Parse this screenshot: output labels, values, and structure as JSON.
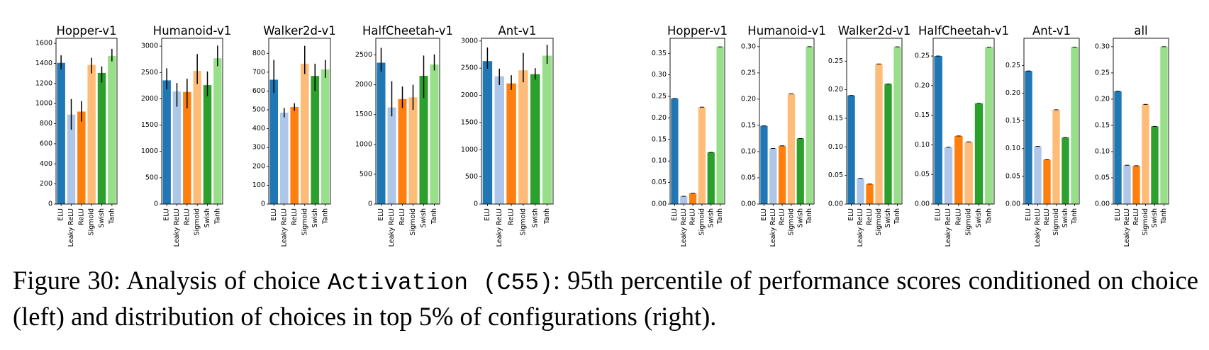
{
  "caption": {
    "label": "Figure 30:",
    "pre": "Analysis of choice",
    "code": "Activation (C55)",
    "post": ": 95th percentile of performance scores conditioned on choice (left) and distribution of choices in top 5% of configurations (right)."
  },
  "colors": [
    "#1f77b4",
    "#aec7e8",
    "#ff7f0e",
    "#ffbb78",
    "#2ca02c",
    "#98df8a"
  ],
  "chart_data": [
    {
      "type": "bar",
      "title": "Hopper-v1",
      "group": "left",
      "categories": [
        "ELU",
        "Leaky ReLU",
        "ReLU",
        "Sigmoid",
        "Swish",
        "Tanh"
      ],
      "values": [
        1405,
        890,
        920,
        1385,
        1305,
        1475
      ],
      "err_low": [
        1340,
        740,
        820,
        1300,
        1210,
        1420
      ],
      "err_high": [
        1480,
        1045,
        1025,
        1455,
        1370,
        1545
      ],
      "ylim": [
        0,
        1650
      ],
      "yticks": [
        0,
        200,
        400,
        600,
        800,
        1000,
        1200,
        1400,
        1600
      ]
    },
    {
      "type": "bar",
      "title": "Humanoid-v1",
      "group": "left",
      "categories": [
        "ELU",
        "Leaky ReLU",
        "ReLU",
        "Sigmoid",
        "Swish",
        "Tanh"
      ],
      "values": [
        2350,
        2140,
        2130,
        2530,
        2260,
        2770
      ],
      "err_low": [
        2180,
        1850,
        1820,
        2280,
        2050,
        2620
      ],
      "err_high": [
        2580,
        2300,
        2380,
        2850,
        2520,
        3010
      ],
      "ylim": [
        0,
        3150
      ],
      "yticks": [
        0,
        500,
        1000,
        1500,
        2000,
        2500,
        3000
      ]
    },
    {
      "type": "bar",
      "title": "Walker2d-v1",
      "group": "left",
      "categories": [
        "ELU",
        "Leaky ReLU",
        "ReLU",
        "Sigmoid",
        "Swish",
        "Tanh"
      ],
      "values": [
        660,
        485,
        515,
        745,
        680,
        715
      ],
      "err_low": [
        590,
        460,
        495,
        690,
        600,
        670
      ],
      "err_high": [
        765,
        510,
        535,
        840,
        745,
        765
      ],
      "ylim": [
        0,
        880
      ],
      "yticks": [
        0,
        100,
        200,
        300,
        400,
        500,
        600,
        700,
        800
      ]
    },
    {
      "type": "bar",
      "title": "HalfCheetah-v1",
      "group": "left",
      "categories": [
        "ELU",
        "Leaky ReLU",
        "ReLU",
        "Sigmoid",
        "Swish",
        "Tanh"
      ],
      "values": [
        2370,
        1620,
        1760,
        1790,
        2150,
        2340
      ],
      "err_low": [
        2220,
        1470,
        1610,
        1580,
        1780,
        2240
      ],
      "err_high": [
        2620,
        2060,
        1970,
        2000,
        2490,
        2510
      ],
      "ylim": [
        0,
        2780
      ],
      "yticks": [
        0,
        500,
        1000,
        1500,
        2000,
        2500
      ]
    },
    {
      "type": "bar",
      "title": "Ant-v1",
      "group": "left",
      "categories": [
        "ELU",
        "Leaky ReLU",
        "ReLU",
        "Sigmoid",
        "Swish",
        "Tanh"
      ],
      "values": [
        2630,
        2350,
        2220,
        2460,
        2390,
        2730
      ],
      "err_low": [
        2490,
        2190,
        2100,
        2240,
        2290,
        2580
      ],
      "err_high": [
        2880,
        2490,
        2370,
        2780,
        2500,
        2930
      ],
      "ylim": [
        0,
        3050
      ],
      "yticks": [
        0,
        500,
        1000,
        1500,
        2000,
        2500,
        3000
      ]
    },
    {
      "type": "bar",
      "title": "Hopper-v1",
      "group": "right",
      "categories": [
        "ELU",
        "Leaky ReLU",
        "ReLU",
        "Sigmoid",
        "Swish",
        "Tanh"
      ],
      "values": [
        0.245,
        0.018,
        0.025,
        0.225,
        0.12,
        0.365
      ],
      "ylim": [
        0,
        0.385
      ],
      "yticks": [
        0.0,
        0.05,
        0.1,
        0.15,
        0.2,
        0.25,
        0.3,
        0.35
      ],
      "ytick_labels": [
        "0.00",
        "0.05",
        "0.10",
        "0.15",
        "0.20",
        "0.25",
        "0.30",
        "0.35"
      ]
    },
    {
      "type": "bar",
      "title": "Humanoid-v1",
      "group": "right",
      "categories": [
        "ELU",
        "Leaky ReLU",
        "ReLU",
        "Sigmoid",
        "Swish",
        "Tanh"
      ],
      "values": [
        0.149,
        0.106,
        0.111,
        0.21,
        0.125,
        0.3
      ],
      "ylim": [
        0,
        0.316
      ],
      "yticks": [
        0.0,
        0.05,
        0.1,
        0.15,
        0.2,
        0.25,
        0.3
      ],
      "ytick_labels": [
        "0.00",
        "0.05",
        "0.10",
        "0.15",
        "0.20",
        "0.25",
        "0.30"
      ]
    },
    {
      "type": "bar",
      "title": "Walker2d-v1",
      "group": "right",
      "categories": [
        "ELU",
        "Leaky ReLU",
        "ReLU",
        "Sigmoid",
        "Swish",
        "Tanh"
      ],
      "values": [
        0.19,
        0.045,
        0.035,
        0.245,
        0.21,
        0.275
      ],
      "ylim": [
        0,
        0.29
      ],
      "yticks": [
        0.0,
        0.05,
        0.1,
        0.15,
        0.2,
        0.25
      ],
      "ytick_labels": [
        "0.00",
        "0.05",
        "0.10",
        "0.15",
        "0.20",
        "0.25"
      ]
    },
    {
      "type": "bar",
      "title": "HalfCheetah-v1",
      "group": "right",
      "categories": [
        "ELU",
        "Leaky ReLU",
        "ReLU",
        "Sigmoid",
        "Swish",
        "Tanh"
      ],
      "values": [
        0.25,
        0.096,
        0.115,
        0.105,
        0.17,
        0.265
      ],
      "ylim": [
        0,
        0.28
      ],
      "yticks": [
        0.0,
        0.05,
        0.1,
        0.15,
        0.2,
        0.25
      ],
      "ytick_labels": [
        "0.00",
        "0.05",
        "0.10",
        "0.15",
        "0.20",
        "0.25"
      ]
    },
    {
      "type": "bar",
      "title": "Ant-v1",
      "group": "right",
      "categories": [
        "ELU",
        "Leaky ReLU",
        "ReLU",
        "Sigmoid",
        "Swish",
        "Tanh"
      ],
      "values": [
        0.24,
        0.104,
        0.08,
        0.17,
        0.12,
        0.283
      ],
      "ylim": [
        0,
        0.299
      ],
      "yticks": [
        0.0,
        0.05,
        0.1,
        0.15,
        0.2,
        0.25
      ],
      "ytick_labels": [
        "0.00",
        "0.05",
        "0.10",
        "0.15",
        "0.20",
        "0.25"
      ]
    },
    {
      "type": "bar",
      "title": "all",
      "group": "right",
      "categories": [
        "ELU",
        "Leaky ReLU",
        "ReLU",
        "Sigmoid",
        "Swish",
        "Tanh"
      ],
      "values": [
        0.215,
        0.074,
        0.073,
        0.19,
        0.148,
        0.3
      ],
      "ylim": [
        0,
        0.316
      ],
      "yticks": [
        0.0,
        0.05,
        0.1,
        0.15,
        0.2,
        0.25,
        0.3
      ],
      "ytick_labels": [
        "0.00",
        "0.05",
        "0.10",
        "0.15",
        "0.20",
        "0.25",
        "0.30"
      ]
    }
  ]
}
